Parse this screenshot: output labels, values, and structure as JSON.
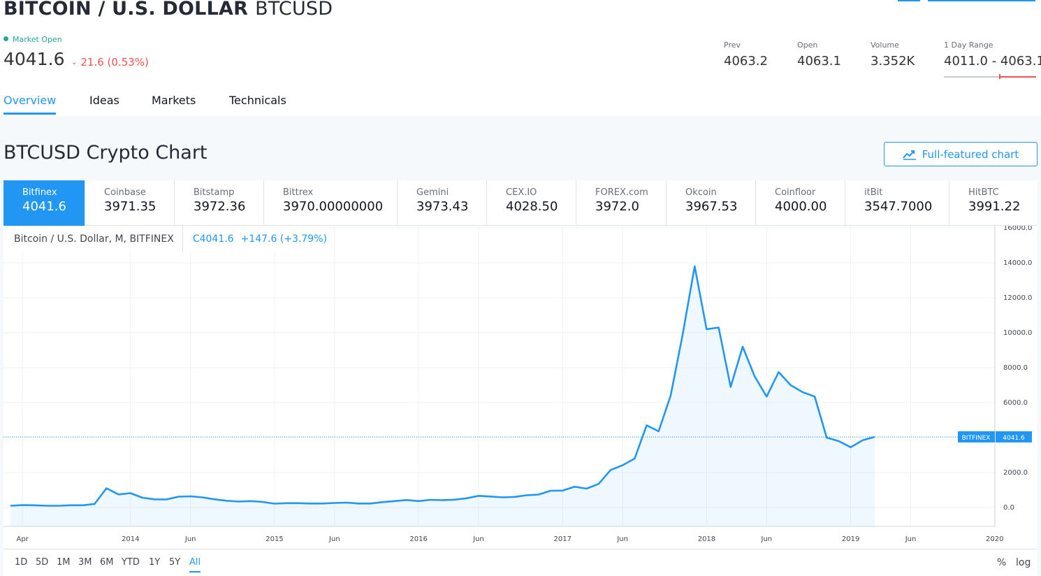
{
  "header": {
    "title_bold": "BITCOIN / U.S. DOLLAR",
    "title_ticker": "BTCUSD",
    "market_status": "Market Open",
    "price": "4041.6",
    "change": "21.6 (0.53%)",
    "stats": [
      {
        "label": "Prev",
        "value": "4063.2"
      },
      {
        "label": "Open",
        "value": "4063.1"
      },
      {
        "label": "Volume",
        "value": "3.352K"
      },
      {
        "label": "1 Day Range",
        "value": "4011.0 - 4063.1"
      }
    ],
    "day_range_position": 0.6
  },
  "tabs": [
    {
      "label": "Overview",
      "active": true
    },
    {
      "label": "Ideas",
      "active": false
    },
    {
      "label": "Markets",
      "active": false
    },
    {
      "label": "Technicals",
      "active": false
    }
  ],
  "chart_section": {
    "title": "BTCUSD Crypto Chart",
    "full_chart_button": "Full-featured chart"
  },
  "exchanges": [
    {
      "name": "Bitfinex",
      "price": "4041.6",
      "active": true
    },
    {
      "name": "Coinbase",
      "price": "3971.35"
    },
    {
      "name": "Bitstamp",
      "price": "3972.36"
    },
    {
      "name": "Bittrex",
      "price": "3970.00000000"
    },
    {
      "name": "Gemini",
      "price": "3973.43"
    },
    {
      "name": "CEX.IO",
      "price": "4028.50"
    },
    {
      "name": "FOREX.com",
      "price": "3972.0"
    },
    {
      "name": "Okcoin",
      "price": "3967.53"
    },
    {
      "name": "Coinfloor",
      "price": "4000.00"
    },
    {
      "name": "itBit",
      "price": "3547.7000"
    },
    {
      "name": "HitBTC",
      "price": "3991.22"
    }
  ],
  "legend": {
    "symbol": "Bitcoin / U.S. Dollar, M, BITFINEX",
    "close": "C4041.6",
    "change": "+147.6 (+3.79%)"
  },
  "price_tag": {
    "exchange": "BITFINEX",
    "value": "4041.6"
  },
  "time_ranges": [
    {
      "label": "1D"
    },
    {
      "label": "5D"
    },
    {
      "label": "1M"
    },
    {
      "label": "3M"
    },
    {
      "label": "6M"
    },
    {
      "label": "YTD"
    },
    {
      "label": "1Y"
    },
    {
      "label": "5Y"
    },
    {
      "label": "All",
      "active": true
    }
  ],
  "scale_options": [
    {
      "label": "%"
    },
    {
      "label": "log"
    }
  ],
  "colors": {
    "accent": "#2196f3",
    "down": "#ef5350",
    "up": "#26a69a"
  },
  "chart_data": {
    "type": "area",
    "title": "",
    "xlabel": "",
    "ylabel": "",
    "x_range": [
      "2013-03",
      "2020-01"
    ],
    "ylim": [
      -1200,
      16000
    ],
    "yticks": [
      0,
      2000,
      4000,
      6000,
      8000,
      10000,
      12000,
      14000,
      16000
    ],
    "ytick_labels": [
      "0.0",
      "2000.0",
      "4000.0",
      "6000.0",
      "8000.0",
      "10000.0",
      "12000.0",
      "14000.0",
      "16000.0"
    ],
    "xticks": [
      {
        "x": "2013-04",
        "label": "Apr"
      },
      {
        "x": "2014-01",
        "label": "2014"
      },
      {
        "x": "2014-06",
        "label": "Jun"
      },
      {
        "x": "2015-01",
        "label": "2015"
      },
      {
        "x": "2015-06",
        "label": "Jun"
      },
      {
        "x": "2016-01",
        "label": "2016"
      },
      {
        "x": "2016-06",
        "label": "Jun"
      },
      {
        "x": "2017-01",
        "label": "2017"
      },
      {
        "x": "2017-06",
        "label": "Jun"
      },
      {
        "x": "2018-01",
        "label": "2018"
      },
      {
        "x": "2018-06",
        "label": "Jun"
      },
      {
        "x": "2019-01",
        "label": "2019"
      },
      {
        "x": "2019-06",
        "label": "Jun"
      },
      {
        "x": "2020-01",
        "label": "2020"
      }
    ],
    "grid": true,
    "last_value_line": 4041.6,
    "series": [
      {
        "name": "",
        "color": "#2196f3",
        "x": [
          "2013-03",
          "2013-04",
          "2013-05",
          "2013-06",
          "2013-07",
          "2013-08",
          "2013-09",
          "2013-10",
          "2013-11",
          "2013-12",
          "2014-01",
          "2014-02",
          "2014-03",
          "2014-04",
          "2014-05",
          "2014-06",
          "2014-07",
          "2014-08",
          "2014-09",
          "2014-10",
          "2014-11",
          "2014-12",
          "2015-01",
          "2015-02",
          "2015-03",
          "2015-04",
          "2015-05",
          "2015-06",
          "2015-07",
          "2015-08",
          "2015-09",
          "2015-10",
          "2015-11",
          "2015-12",
          "2016-01",
          "2016-02",
          "2016-03",
          "2016-04",
          "2016-05",
          "2016-06",
          "2016-07",
          "2016-08",
          "2016-09",
          "2016-10",
          "2016-11",
          "2016-12",
          "2017-01",
          "2017-02",
          "2017-03",
          "2017-04",
          "2017-05",
          "2017-06",
          "2017-07",
          "2017-08",
          "2017-09",
          "2017-10",
          "2017-11",
          "2017-12",
          "2018-01",
          "2018-02",
          "2018-03",
          "2018-04",
          "2018-05",
          "2018-06",
          "2018-07",
          "2018-08",
          "2018-09",
          "2018-10",
          "2018-11",
          "2018-12",
          "2019-01",
          "2019-02",
          "2019-03"
        ],
        "values": [
          100,
          135,
          130,
          100,
          100,
          130,
          130,
          200,
          1100,
          750,
          820,
          560,
          470,
          460,
          620,
          640,
          580,
          470,
          390,
          340,
          370,
          320,
          220,
          250,
          250,
          230,
          230,
          260,
          280,
          230,
          230,
          310,
          370,
          430,
          370,
          440,
          420,
          450,
          530,
          670,
          630,
          580,
          610,
          700,
          740,
          960,
          970,
          1190,
          1080,
          1350,
          2150,
          2420,
          2800,
          4700,
          4360,
          6400,
          9900,
          13800,
          10200,
          10300,
          6900,
          9200,
          7500,
          6350,
          7750,
          7000,
          6600,
          6350,
          4000,
          3800,
          3450,
          3850,
          4041.6
        ]
      }
    ]
  }
}
